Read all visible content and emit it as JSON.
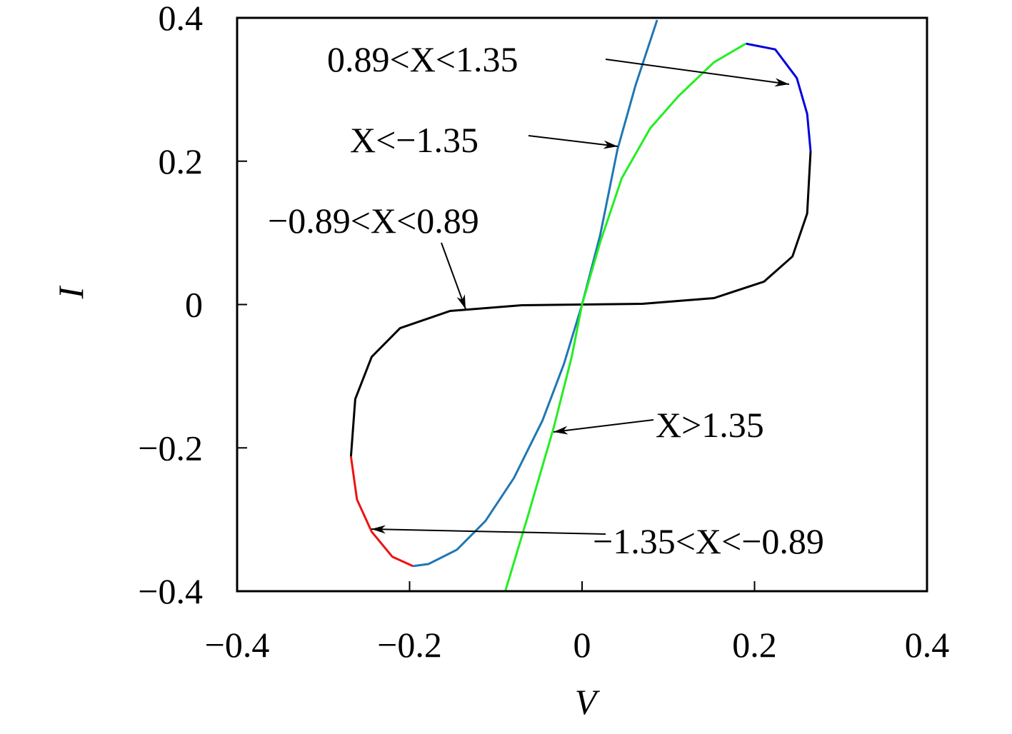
{
  "chart_data": {
    "type": "line",
    "xlabel": "V",
    "ylabel": "I",
    "xlim": [
      -0.4,
      0.4
    ],
    "ylim": [
      -0.4,
      0.4
    ],
    "xticks": [
      {
        "value": -0.4,
        "label": "−0.4"
      },
      {
        "value": -0.2,
        "label": "−0.2"
      },
      0,
      0.2,
      0.4
    ],
    "yticks": [
      {
        "value": -0.4,
        "label": "−0.4"
      },
      {
        "value": -0.2,
        "label": "−0.2"
      },
      0,
      0.2,
      0.4
    ],
    "series": [
      {
        "name": "0.89<X<1.35",
        "color": "#0000dd",
        "x": [
          0.19,
          0.224,
          0.249,
          0.261,
          0.265
        ],
        "values": [
          0.364,
          0.356,
          0.316,
          0.266,
          0.214
        ]
      },
      {
        "name": "X<−1.35",
        "color": "#1f77b4",
        "x": [
          0.087,
          0.062,
          0.041,
          0.021,
          0,
          -0.021,
          -0.046,
          -0.079,
          -0.112,
          -0.145,
          -0.178,
          -0.196
        ],
        "values": [
          0.397,
          0.306,
          0.216,
          0.097,
          0,
          -0.083,
          -0.162,
          -0.242,
          -0.302,
          -0.342,
          -0.362,
          -0.365
        ]
      },
      {
        "name": "−0.89<X<0.89",
        "color": "#000000",
        "x": [
          0.265,
          0.261,
          0.244,
          0.211,
          0.153,
          0.07,
          0,
          -0.07,
          -0.153,
          -0.211,
          -0.244,
          -0.263,
          -0.268
        ],
        "values": [
          0.214,
          0.127,
          0.067,
          0.032,
          0.009,
          0.001,
          0,
          -0.001,
          -0.009,
          -0.033,
          -0.073,
          -0.132,
          -0.212
        ]
      },
      {
        "name": "X>1.35",
        "color": "#22ee22",
        "x": [
          -0.089,
          -0.062,
          -0.033,
          -0.012,
          0,
          0.021,
          0.046,
          0.079,
          0.112,
          0.153,
          0.19
        ],
        "values": [
          -0.4,
          -0.292,
          -0.172,
          -0.073,
          0,
          0.087,
          0.176,
          0.246,
          0.291,
          0.338,
          0.364
        ]
      },
      {
        "name": "−1.35<X<−0.89",
        "color": "#ee1111",
        "x": [
          -0.268,
          -0.261,
          -0.244,
          -0.22,
          -0.196
        ],
        "values": [
          -0.212,
          -0.272,
          -0.317,
          -0.352,
          -0.365
        ]
      }
    ]
  }
}
